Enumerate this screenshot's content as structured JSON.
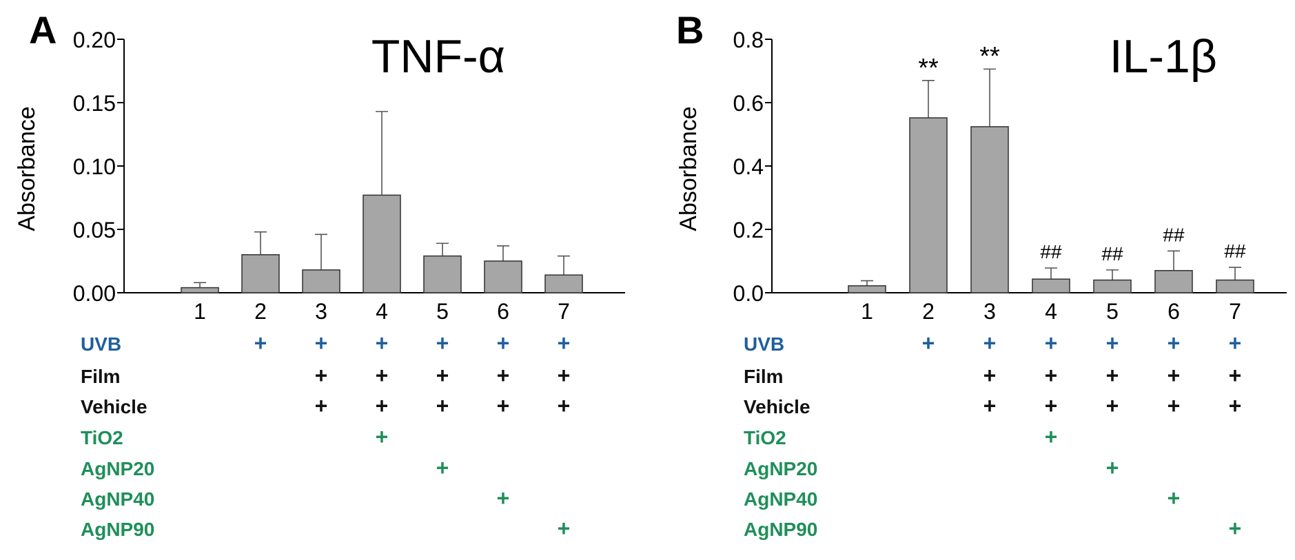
{
  "colors": {
    "bar_fill": "#a6a6a6",
    "bar_stroke": "#3a3a3a",
    "axis": "#000000",
    "uvb": "#1f5f9e",
    "black_rows": "#111111",
    "green_rows": "#1f8f5a"
  },
  "conditions": {
    "row_labels": [
      "UVB",
      "Film",
      "Vehicle",
      "TiO2",
      "AgNP20",
      "AgNP40",
      "AgNP90"
    ],
    "row_colors": [
      "uvb",
      "black_rows",
      "black_rows",
      "green_rows",
      "green_rows",
      "green_rows",
      "green_rows"
    ],
    "mark": "+",
    "matrix": [
      [
        0,
        1,
        1,
        1,
        1,
        1,
        1
      ],
      [
        0,
        0,
        1,
        1,
        1,
        1,
        1
      ],
      [
        0,
        0,
        1,
        1,
        1,
        1,
        1
      ],
      [
        0,
        0,
        0,
        1,
        0,
        0,
        0
      ],
      [
        0,
        0,
        0,
        0,
        1,
        0,
        0
      ],
      [
        0,
        0,
        0,
        0,
        0,
        1,
        0
      ],
      [
        0,
        0,
        0,
        0,
        0,
        0,
        1
      ]
    ]
  },
  "chart_data": [
    {
      "panel": "A",
      "type": "bar",
      "title": "TNF-α",
      "xlabel": "",
      "ylabel": "Absorbance",
      "ylim": [
        0,
        0.2
      ],
      "yticks": [
        0.0,
        0.05,
        0.1,
        0.15,
        0.2
      ],
      "ytick_labels": [
        "0.00",
        "0.05",
        "0.10",
        "0.15",
        "0.20"
      ],
      "categories": [
        "1",
        "2",
        "3",
        "4",
        "5",
        "6",
        "7"
      ],
      "values": [
        0.004,
        0.03,
        0.018,
        0.077,
        0.029,
        0.025,
        0.014
      ],
      "errors": [
        0.004,
        0.018,
        0.028,
        0.066,
        0.01,
        0.012,
        0.015
      ],
      "annotations": [
        "",
        "",
        "",
        "",
        "",
        "",
        ""
      ],
      "grid": false
    },
    {
      "panel": "B",
      "type": "bar",
      "title": "IL-1β",
      "xlabel": "",
      "ylabel": "Absorbance",
      "ylim": [
        0,
        0.8
      ],
      "yticks": [
        0.0,
        0.2,
        0.4,
        0.6,
        0.8
      ],
      "ytick_labels": [
        "0.0",
        "0.2",
        "0.4",
        "0.6",
        "0.8"
      ],
      "categories": [
        "1",
        "2",
        "3",
        "4",
        "5",
        "6",
        "7"
      ],
      "values": [
        0.022,
        0.552,
        0.524,
        0.043,
        0.04,
        0.07,
        0.04
      ],
      "errors": [
        0.016,
        0.118,
        0.182,
        0.035,
        0.032,
        0.062,
        0.04
      ],
      "annotations": [
        "",
        "**",
        "**",
        "##",
        "##",
        "##",
        "##"
      ],
      "grid": false
    }
  ]
}
